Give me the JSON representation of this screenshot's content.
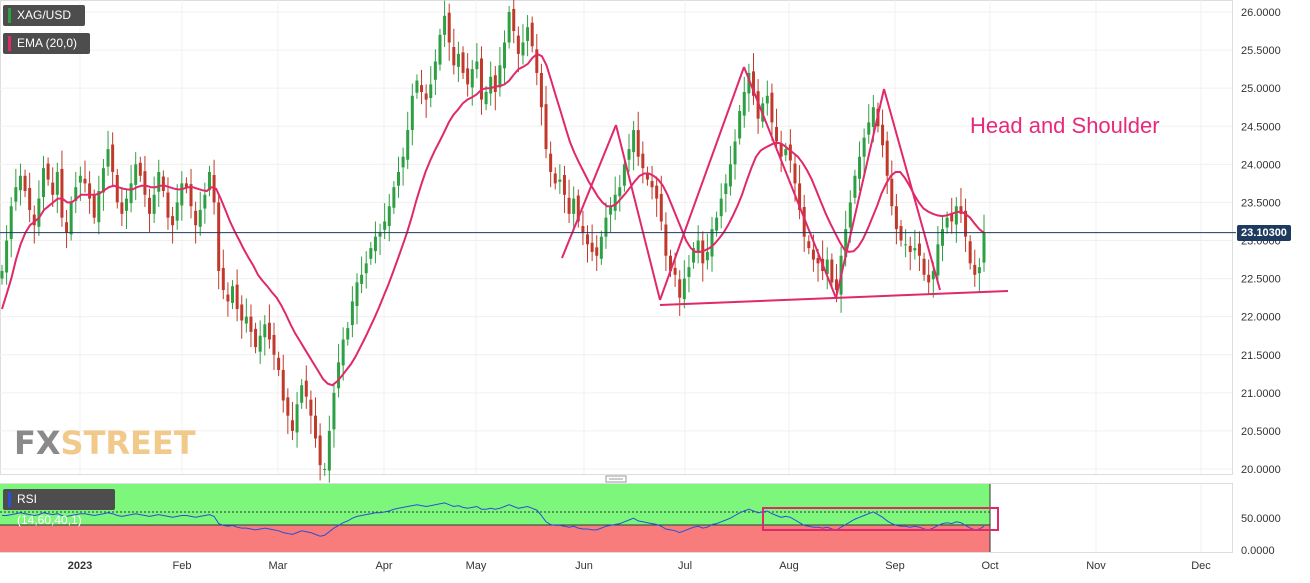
{
  "chart_data": [
    {
      "type": "candlestick",
      "symbol": "XAG/USD",
      "indicator": "EMA (20,0)",
      "annotation": "Head and Shoulder",
      "last_price": "23.10300",
      "ylim": [
        20.0,
        26.0
      ],
      "y_ticks": [
        "26.0000",
        "25.5000",
        "25.0000",
        "24.5000",
        "24.0000",
        "23.5000",
        "23.0000",
        "22.5000",
        "22.0000",
        "21.5000",
        "21.0000",
        "20.5000",
        "20.0000"
      ],
      "x_ticks": [
        "2023",
        "Feb",
        "Mar",
        "Apr",
        "May",
        "Jun",
        "Jul",
        "Aug",
        "Sep",
        "Oct",
        "Nov",
        "Dec"
      ],
      "colors": {
        "up": "#2ea043",
        "down": "#c0392b",
        "ema": "#e0286a",
        "pattern": "#e0286a"
      },
      "closes": [
        22.6,
        23.0,
        23.45,
        23.7,
        23.85,
        23.65,
        23.4,
        23.2,
        23.55,
        23.95,
        23.8,
        23.6,
        23.9,
        23.3,
        23.1,
        23.5,
        23.7,
        23.85,
        23.75,
        23.55,
        23.3,
        23.65,
        23.95,
        24.2,
        23.9,
        23.5,
        23.35,
        23.55,
        23.75,
        24.0,
        23.85,
        23.6,
        23.35,
        23.6,
        23.9,
        23.65,
        23.3,
        23.2,
        23.5,
        23.75,
        23.7,
        23.45,
        23.2,
        23.4,
        23.6,
        23.9,
        23.5,
        22.6,
        22.35,
        22.2,
        22.4,
        22.1,
        21.95,
        22.0,
        21.8,
        21.6,
        21.75,
        21.9,
        21.7,
        21.5,
        21.3,
        20.9,
        20.7,
        20.5,
        20.85,
        21.1,
        20.95,
        20.7,
        20.4,
        20.05,
        20.0,
        20.5,
        21.0,
        21.4,
        21.7,
        21.85,
        22.2,
        22.45,
        22.55,
        22.7,
        22.9,
        23.05,
        23.1,
        23.25,
        23.45,
        23.7,
        23.9,
        24.1,
        24.45,
        24.9,
        25.1,
        24.95,
        24.85,
        25.05,
        25.35,
        25.7,
        25.95,
        25.6,
        25.3,
        25.45,
        25.2,
        25.05,
        25.25,
        25.35,
        24.85,
        24.95,
        25.15,
        24.95,
        25.3,
        25.6,
        26.0,
        25.75,
        25.45,
        25.6,
        25.8,
        25.55,
        25.2,
        24.75,
        24.2,
        23.9,
        23.75,
        23.8,
        23.6,
        23.35,
        23.55,
        23.25,
        23.1,
        22.95,
        22.85,
        22.8,
        23.05,
        23.3,
        23.45,
        23.6,
        23.7,
        24.0,
        24.2,
        24.45,
        24.1,
        23.95,
        23.8,
        23.7,
        23.55,
        23.25,
        22.8,
        22.6,
        22.55,
        22.25,
        22.5,
        22.65,
        22.9,
        23.0,
        22.7,
        22.85,
        23.15,
        23.3,
        23.55,
        23.75,
        24.0,
        24.3,
        24.7,
        24.95,
        25.2,
        24.9,
        24.6,
        24.8,
        24.9,
        24.55,
        24.3,
        24.1,
        24.2,
        24.05,
        23.75,
        23.4,
        23.05,
        22.9,
        22.75,
        22.7,
        22.6,
        22.75,
        22.45,
        22.35,
        22.8,
        23.15,
        23.5,
        23.85,
        24.1,
        24.35,
        24.55,
        24.75,
        24.5,
        24.25,
        23.85,
        23.45,
        23.15,
        23.0,
        22.95,
        22.85,
        22.9,
        22.8,
        22.55,
        22.45,
        22.6,
        22.95,
        23.15,
        23.3,
        23.25,
        23.45,
        23.35,
        23.05,
        22.7,
        22.55,
        22.65,
        23.1
      ],
      "ema": [
        22.1,
        22.3,
        22.5,
        22.75,
        22.95,
        23.1,
        23.2,
        23.25,
        23.3,
        23.4,
        23.45,
        23.5,
        23.55,
        23.55,
        23.5,
        23.5,
        23.55,
        23.6,
        23.6,
        23.6,
        23.6,
        23.62,
        23.66,
        23.7,
        23.72,
        23.7,
        23.68,
        23.67,
        23.67,
        23.7,
        23.72,
        23.72,
        23.7,
        23.7,
        23.72,
        23.72,
        23.7,
        23.68,
        23.67,
        23.68,
        23.7,
        23.7,
        23.68,
        23.66,
        23.65,
        23.7,
        23.68,
        23.55,
        23.4,
        23.25,
        23.12,
        23.0,
        22.88,
        22.77,
        22.67,
        22.55,
        22.47,
        22.4,
        22.32,
        22.25,
        22.15,
        22.03,
        21.9,
        21.78,
        21.68,
        21.58,
        21.48,
        21.38,
        21.28,
        21.18,
        21.12,
        21.1,
        21.15,
        21.22,
        21.3,
        21.38,
        21.48,
        21.6,
        21.72,
        21.85,
        21.98,
        22.12,
        22.27,
        22.42,
        22.58,
        22.75,
        22.92,
        23.1,
        23.3,
        23.52,
        23.72,
        23.9,
        24.05,
        24.18,
        24.3,
        24.42,
        24.55,
        24.65,
        24.72,
        24.8,
        24.85,
        24.88,
        24.92,
        24.98,
        25.0,
        25.0,
        25.02,
        25.03,
        25.05,
        25.1,
        25.18,
        25.25,
        25.28,
        25.32,
        25.4,
        25.45,
        25.42,
        25.3,
        25.1,
        24.9,
        24.7,
        24.5,
        24.3,
        24.15,
        24.02,
        23.9,
        23.78,
        23.68,
        23.58,
        23.5,
        23.45,
        23.45,
        23.48,
        23.55,
        23.62,
        23.7,
        23.78,
        23.85,
        23.88,
        23.88,
        23.85,
        23.8,
        23.72,
        23.6,
        23.45,
        23.3,
        23.15,
        23.0,
        22.9,
        22.85,
        22.85,
        22.87,
        22.9,
        22.95,
        23.02,
        23.1,
        23.2,
        23.32,
        23.45,
        23.6,
        23.78,
        23.95,
        24.1,
        24.18,
        24.22,
        24.25,
        24.28,
        24.28,
        24.25,
        24.2,
        24.15,
        24.1,
        24.02,
        23.92,
        23.8,
        23.65,
        23.5,
        23.35,
        23.22,
        23.1,
        22.98,
        22.88,
        22.85,
        22.86,
        22.92,
        23.02,
        23.15,
        23.3,
        23.45,
        23.62,
        23.75,
        23.85,
        23.9,
        23.9,
        23.82,
        23.72,
        23.6,
        23.5,
        23.42,
        23.38,
        23.35,
        23.33,
        23.32,
        23.33,
        23.35,
        23.37,
        23.38,
        23.35,
        23.3,
        23.22,
        23.15,
        23.1
      ],
      "pattern_lines": [
        [
          [
            562,
            258
          ],
          [
            616,
            125
          ]
        ],
        [
          [
            616,
            125
          ],
          [
            660,
            300
          ]
        ],
        [
          [
            660,
            300
          ],
          [
            744,
            67
          ]
        ],
        [
          [
            744,
            67
          ],
          [
            836,
            298
          ]
        ],
        [
          [
            836,
            298
          ],
          [
            884,
            89
          ]
        ],
        [
          [
            884,
            89
          ],
          [
            940,
            290
          ]
        ],
        [
          [
            660,
            305
          ],
          [
            1008,
            291
          ]
        ]
      ]
    },
    {
      "type": "line",
      "indicator": "RSI (14,60,40,1)",
      "ylim": [
        0,
        100
      ],
      "y_ticks": [
        "50.0000",
        "0.0000"
      ],
      "levels": {
        "upper": 60,
        "lower": 40
      },
      "colors": {
        "line": "#2b4fd6",
        "upper_zone": "#7cf77c",
        "lower_zone": "#f87c7c"
      },
      "values": [
        55,
        55,
        56,
        57,
        58,
        57,
        56,
        55,
        56,
        58,
        57,
        56,
        57,
        55,
        54,
        55,
        56,
        57,
        57,
        56,
        55,
        56,
        57,
        58,
        57,
        55,
        54,
        55,
        56,
        57,
        56,
        55,
        54,
        55,
        56,
        55,
        54,
        53,
        54,
        55,
        55,
        54,
        53,
        54,
        55,
        56,
        54,
        46,
        44,
        43,
        44,
        42,
        41,
        41,
        40,
        39,
        40,
        41,
        40,
        39,
        38,
        36,
        35,
        34,
        36,
        38,
        37,
        36,
        34,
        32,
        33,
        37,
        41,
        44,
        47,
        49,
        52,
        54,
        55,
        56,
        57,
        58,
        58,
        59,
        60,
        62,
        63,
        64,
        65,
        66,
        67,
        66,
        65,
        66,
        67,
        68,
        69,
        67,
        65,
        66,
        64,
        63,
        64,
        65,
        62,
        62,
        63,
        62,
        63,
        65,
        67,
        65,
        63,
        64,
        65,
        63,
        61,
        55,
        48,
        45,
        44,
        44,
        43,
        42,
        43,
        41,
        40,
        40,
        39,
        39,
        41,
        43,
        44,
        45,
        46,
        48,
        50,
        52,
        49,
        48,
        47,
        46,
        45,
        43,
        40,
        39,
        38,
        36,
        38,
        40,
        42,
        43,
        41,
        42,
        45,
        46,
        48,
        50,
        52,
        55,
        58,
        60,
        62,
        60,
        58,
        59,
        60,
        57,
        55,
        53,
        54,
        53,
        50,
        47,
        44,
        43,
        42,
        42,
        41,
        42,
        40,
        39,
        42,
        45,
        48,
        51,
        53,
        55,
        57,
        59,
        56,
        53,
        49,
        46,
        44,
        43,
        43,
        42,
        43,
        42,
        40,
        39,
        41,
        44,
        46,
        47,
        46,
        48,
        47,
        44,
        41,
        39,
        40,
        43
      ],
      "highlight_box": true
    }
  ]
}
